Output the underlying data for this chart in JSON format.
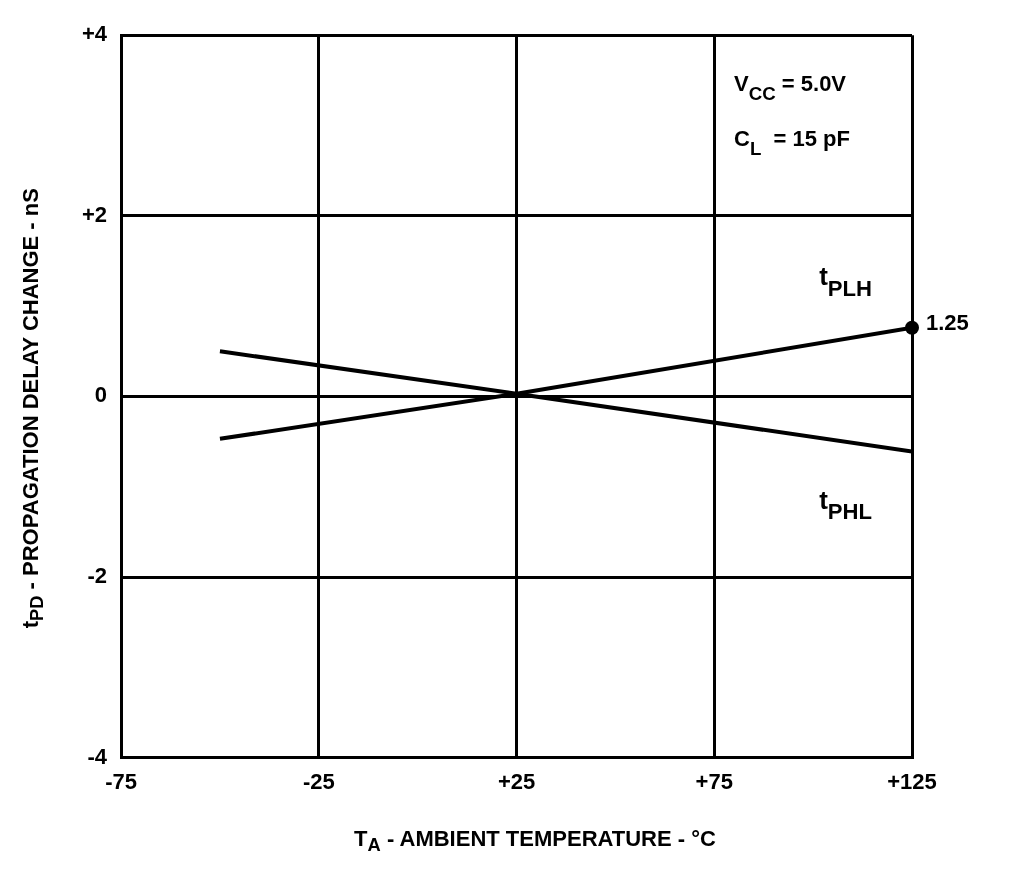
{
  "chart_data": {
    "type": "line",
    "xlabel": "T$_{A}$ - AMBIENT TEMPERATURE - °C",
    "ylabel": "t$_{PD}$ - PROPAGATION DELAY CHANGE - nS",
    "x": [
      -50,
      25,
      125
    ],
    "series": [
      {
        "name": "t$_{PLH}$",
        "color": "#000000",
        "values": [
          -0.47,
          0.03,
          0.76
        ]
      },
      {
        "name": "t$_{PHL}$",
        "color": "#000000",
        "values": [
          0.5,
          0.03,
          -0.61
        ]
      }
    ],
    "xlim": [
      -75,
      125
    ],
    "xticks": [
      -75,
      {
        "value": -25,
        "label": "-25"
      },
      {
        "value": 25,
        "label": "+25"
      },
      {
        "value": 75,
        "label": "+75"
      },
      {
        "value": 125,
        "label": "+125"
      }
    ],
    "ylim": [
      -4,
      4
    ],
    "yticks": [
      {
        "value": -4,
        "label": "-4"
      },
      {
        "value": -2,
        "label": "-2"
      },
      0,
      {
        "value": 2,
        "label": "+2"
      },
      {
        "value": 4,
        "label": "+4"
      }
    ],
    "grid": true,
    "legend": false,
    "marker": "none",
    "line_style": "solid",
    "annotations": [
      "V$_{CC}$ = 5.0V",
      "C$_{L}$  = 15 pF",
      {
        "text": "1.25",
        "x": 125,
        "y": 0.76
      }
    ]
  }
}
